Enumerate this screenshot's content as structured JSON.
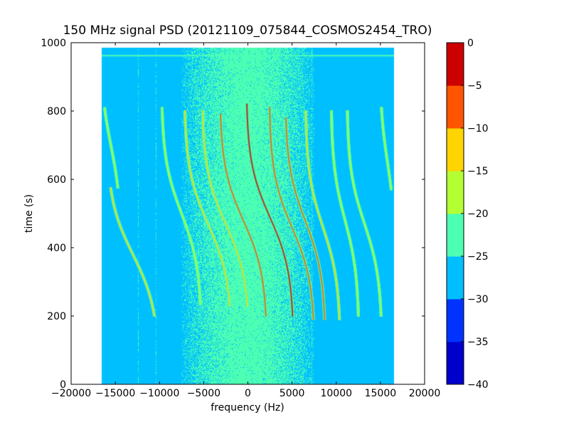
{
  "chart_data": {
    "type": "heatmap",
    "title": "150 MHz signal PSD (20121109_075844_COSMOS2454_TRO)",
    "xlabel": "frequency (Hz)",
    "ylabel": "time (s)",
    "xlim": [
      -20000,
      20000
    ],
    "ylim": [
      0,
      1000
    ],
    "xticks": [
      -20000,
      -15000,
      -10000,
      -5000,
      0,
      5000,
      10000,
      15000,
      20000
    ],
    "xtick_labels": [
      "−20000",
      "−15000",
      "−10000",
      "−5000",
      "0",
      "5000",
      "10000",
      "15000",
      "20000"
    ],
    "yticks": [
      0,
      200,
      400,
      600,
      800,
      1000
    ],
    "ytick_labels": [
      "0",
      "200",
      "400",
      "600",
      "800",
      "1000"
    ],
    "data_extent": {
      "x": [
        -16500,
        16500
      ],
      "y": [
        0,
        985
      ]
    },
    "background_level": -27,
    "noise_band": {
      "center_hz": 0,
      "halfwidth_hz": 7500,
      "level": -22.5
    },
    "horizontal_line": {
      "time_s": 962,
      "level": -22
    },
    "colorbar": {
      "min": -40,
      "max": 0,
      "ticks": [
        0,
        -5,
        -10,
        -15,
        -20,
        -25,
        -30,
        -35,
        -40
      ],
      "tick_labels": [
        "0",
        "−5",
        "−10",
        "−15",
        "−20",
        "−25",
        "−30",
        "−35",
        "−40"
      ],
      "colors": [
        "#0000cc",
        "#0033ff",
        "#00bfff",
        "#4dffb3",
        "#b3ff33",
        "#ffd400",
        "#ff5500",
        "#cc0000"
      ]
    },
    "series": [
      {
        "center_hz": -13000,
        "amp_hz": 3000,
        "t_start": 200,
        "t_end": 575,
        "t_mid": 380,
        "level": -15
      },
      {
        "center_hz": -15500,
        "amp_hz": 1200,
        "t_start": 575,
        "t_end": 810,
        "t_mid": 700,
        "level": -17
      },
      {
        "center_hz": -7500,
        "amp_hz": 2300,
        "t_start": 235,
        "t_end": 810,
        "t_mid": 500,
        "level": -16
      },
      {
        "center_hz": -4500,
        "amp_hz": 2700,
        "t_start": 230,
        "t_end": 800,
        "t_mid": 470,
        "level": -14
      },
      {
        "center_hz": -2500,
        "amp_hz": 2700,
        "t_start": 230,
        "t_end": 800,
        "t_mid": 470,
        "level": -12
      },
      {
        "center_hz": -500,
        "amp_hz": 2700,
        "t_start": 200,
        "t_end": 790,
        "t_mid": 480,
        "level": -9
      },
      {
        "center_hz": 2500,
        "amp_hz": 2700,
        "t_start": 200,
        "t_end": 820,
        "t_mid": 490,
        "level": -5
      },
      {
        "center_hz": 5000,
        "amp_hz": 2600,
        "t_start": 190,
        "t_end": 810,
        "t_mid": 460,
        "level": -8
      },
      {
        "center_hz": 6500,
        "amp_hz": 2300,
        "t_start": 190,
        "t_end": 780,
        "t_mid": 480,
        "level": -10
      },
      {
        "center_hz": 8500,
        "amp_hz": 2000,
        "t_start": 190,
        "t_end": 800,
        "t_mid": 460,
        "level": -15
      },
      {
        "center_hz": 11000,
        "amp_hz": 1600,
        "t_start": 200,
        "t_end": 800,
        "t_mid": 480,
        "level": -16
      },
      {
        "center_hz": 13200,
        "amp_hz": 2000,
        "t_start": 200,
        "t_end": 800,
        "t_mid": 470,
        "level": -18
      },
      {
        "center_hz": 15800,
        "amp_hz": 900,
        "t_start": 570,
        "t_end": 810,
        "t_mid": 650,
        "level": -17
      }
    ]
  }
}
